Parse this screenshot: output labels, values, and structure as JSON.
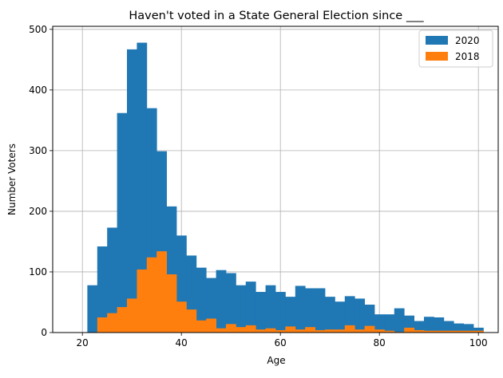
{
  "chart_data": {
    "type": "histogram",
    "title": "Haven't voted in a State General Election since ___",
    "xlabel": "Age",
    "ylabel": "Number Voters",
    "xlim": [
      14,
      104
    ],
    "ylim": [
      0,
      505
    ],
    "xticks": [
      20,
      40,
      60,
      80,
      100
    ],
    "yticks": [
      0,
      100,
      200,
      300,
      400,
      500
    ],
    "grid": true,
    "legend_position": "top-right",
    "series": [
      {
        "name": "2020",
        "color": "#1f77b4",
        "bin_start": 21,
        "bin_width": 2,
        "values": [
          78,
          142,
          173,
          362,
          467,
          478,
          370,
          299,
          208,
          160,
          127,
          107,
          90,
          103,
          98,
          78,
          84,
          67,
          78,
          67,
          59,
          77,
          73,
          73,
          59,
          51,
          60,
          56,
          46,
          30,
          30,
          40,
          28,
          19,
          26,
          25,
          19,
          15,
          14,
          8
        ]
      },
      {
        "name": "2018",
        "color": "#ff7f0e",
        "bin_start": 23,
        "bin_width": 2,
        "values": [
          25,
          32,
          42,
          56,
          104,
          124,
          134,
          96,
          51,
          38,
          20,
          23,
          7,
          14,
          9,
          12,
          5,
          7,
          4,
          10,
          5,
          9,
          4,
          5,
          5,
          12,
          5,
          11,
          5,
          3,
          1,
          8,
          4,
          3,
          3,
          3,
          3,
          3,
          3
        ]
      }
    ]
  }
}
